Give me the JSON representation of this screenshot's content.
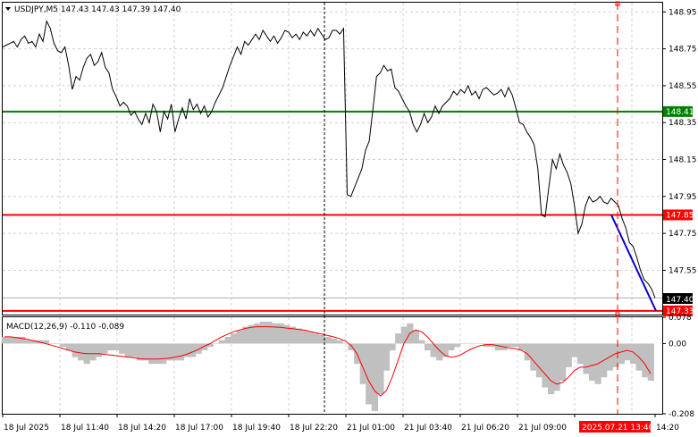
{
  "symbol_header": "USDJPY,M5  147.43 147.43 147.39 147.40",
  "macd_header": "MACD(12,26,9) -0.110 -0.089",
  "price_axis_ticks": [
    "148.95",
    "148.75",
    "148.55",
    "148.35",
    "148.15",
    "147.95",
    "147.75",
    "147.55"
  ],
  "macd_axis_ticks": [
    "0.078",
    "0.00",
    "-0.208"
  ],
  "time_labels": [
    "18 Jul 2025",
    "18 Jul 11:40",
    "18 Jul 14:20",
    "18 Jul 17:00",
    "18 Jul 19:40",
    "18 Jul 22:20",
    "21 Jul 01:00",
    "21 Jul 03:40",
    "21 Jul 06:20",
    "21 Jul 09:00",
    "2025.07.21 13:40",
    "14:20"
  ],
  "levels": [
    {
      "label": "148.41",
      "price": 148.41,
      "color": "#008000"
    },
    {
      "label": "147.85",
      "price": 147.85,
      "color": "#ff0000"
    },
    {
      "label": "147.33",
      "price": 147.33,
      "color": "#ff0000"
    }
  ],
  "current_price_label": "147.40",
  "colors": {
    "price_line": "#000000",
    "macd_hist": "#c0c0c0",
    "macd_signal": "#ff0000",
    "trend_line": "#0000cd",
    "cursor": "#ff0000",
    "green_level": "#008000",
    "red_level": "#ff0000"
  },
  "chart_data": {
    "type": "line",
    "price_range": [
      147.31,
      149.0
    ],
    "macd_range": [
      -0.208,
      0.078
    ],
    "close_prices": [
      148.76,
      148.77,
      148.78,
      148.79,
      148.76,
      148.8,
      148.82,
      148.78,
      148.79,
      148.76,
      148.83,
      148.79,
      148.9,
      148.86,
      148.78,
      148.74,
      148.73,
      148.76,
      148.66,
      148.53,
      148.6,
      148.58,
      148.65,
      148.7,
      148.72,
      148.66,
      148.68,
      148.73,
      148.65,
      148.62,
      148.53,
      148.49,
      148.44,
      148.46,
      148.44,
      148.39,
      148.41,
      148.37,
      148.34,
      148.4,
      148.35,
      148.45,
      148.41,
      148.3,
      148.41,
      148.37,
      148.45,
      148.3,
      148.37,
      148.43,
      148.37,
      148.48,
      148.42,
      148.45,
      148.4,
      148.44,
      148.38,
      148.41,
      148.46,
      148.5,
      148.54,
      148.6,
      148.66,
      148.71,
      148.76,
      148.72,
      148.79,
      148.77,
      148.8,
      148.83,
      148.8,
      148.85,
      148.82,
      148.79,
      148.82,
      148.78,
      148.81,
      148.85,
      148.84,
      148.81,
      148.83,
      148.8,
      148.84,
      148.82,
      148.85,
      148.82,
      148.86,
      148.83,
      148.8,
      148.81,
      148.85,
      148.85,
      148.83,
      148.86,
      147.96,
      147.95,
      148.0,
      148.05,
      148.1,
      148.2,
      148.25,
      148.42,
      148.6,
      148.62,
      148.66,
      148.63,
      148.64,
      148.54,
      148.52,
      148.48,
      148.44,
      148.41,
      148.34,
      148.3,
      148.34,
      148.4,
      148.35,
      148.38,
      148.44,
      148.4,
      148.44,
      148.46,
      148.48,
      148.52,
      148.5,
      148.53,
      148.51,
      148.55,
      148.5,
      148.52,
      148.48,
      148.53,
      148.54,
      148.52,
      148.5,
      148.51,
      148.53,
      148.49,
      148.54,
      148.5,
      148.43,
      148.35,
      148.34,
      148.3,
      148.27,
      148.23,
      148.1,
      147.85,
      147.84,
      148.0,
      148.15,
      148.1,
      148.18,
      148.12,
      148.08,
      148.02,
      147.9,
      147.75,
      147.8,
      147.9,
      147.95,
      147.92,
      147.93,
      147.95,
      147.92,
      147.91,
      147.94,
      147.92,
      147.9,
      147.83,
      147.78,
      147.7,
      147.68,
      147.62,
      147.55,
      147.5,
      147.48,
      147.45,
      147.4
    ],
    "macd_hist": [
      0.02,
      0.02,
      0.02,
      0.02,
      0.01,
      0.01,
      0.01,
      0.01,
      0.0,
      0.0,
      -0.01,
      -0.02,
      -0.04,
      -0.05,
      -0.06,
      -0.05,
      -0.04,
      -0.03,
      -0.02,
      -0.02,
      -0.03,
      -0.04,
      -0.04,
      -0.05,
      -0.05,
      -0.06,
      -0.06,
      -0.06,
      -0.05,
      -0.05,
      -0.05,
      -0.04,
      -0.04,
      -0.03,
      -0.02,
      -0.01,
      0.0,
      0.01,
      0.02,
      0.03,
      0.04,
      0.05,
      0.055,
      0.06,
      0.065,
      0.065,
      0.06,
      0.06,
      0.055,
      0.05,
      0.045,
      0.04,
      0.035,
      0.03,
      0.025,
      0.02,
      0.015,
      0.01,
      0.0,
      -0.02,
      -0.06,
      -0.12,
      -0.18,
      -0.2,
      -0.15,
      -0.08,
      -0.02,
      0.03,
      0.05,
      0.06,
      0.04,
      0.01,
      -0.02,
      -0.04,
      -0.05,
      -0.04,
      -0.02,
      -0.01,
      0.0,
      0.0,
      0.0,
      0.0,
      -0.01,
      -0.01,
      -0.02,
      -0.02,
      -0.01,
      -0.01,
      -0.02,
      -0.05,
      -0.08,
      -0.1,
      -0.13,
      -0.15,
      -0.14,
      -0.11,
      -0.07,
      -0.04,
      -0.06,
      -0.09,
      -0.11,
      -0.12,
      -0.1,
      -0.08,
      -0.07,
      -0.06,
      -0.05,
      -0.06,
      -0.08,
      -0.1,
      -0.11
    ],
    "macd_signal": [
      0.02,
      0.02,
      0.018,
      0.015,
      0.012,
      0.008,
      0.004,
      0.0,
      -0.005,
      -0.01,
      -0.015,
      -0.02,
      -0.025,
      -0.028,
      -0.03,
      -0.03,
      -0.03,
      -0.032,
      -0.034,
      -0.036,
      -0.038,
      -0.04,
      -0.042,
      -0.045,
      -0.046,
      -0.046,
      -0.046,
      -0.045,
      -0.043,
      -0.04,
      -0.037,
      -0.032,
      -0.025,
      -0.017,
      -0.008,
      0.0,
      0.01,
      0.02,
      0.028,
      0.035,
      0.04,
      0.045,
      0.048,
      0.05,
      0.05,
      0.05,
      0.049,
      0.048,
      0.046,
      0.044,
      0.042,
      0.04,
      0.036,
      0.032,
      0.028,
      0.024,
      0.02,
      0.015,
      0.008,
      -0.005,
      -0.03,
      -0.07,
      -0.11,
      -0.14,
      -0.155,
      -0.14,
      -0.1,
      -0.05,
      0.0,
      0.03,
      0.04,
      0.035,
      0.02,
      0.0,
      -0.02,
      -0.035,
      -0.04,
      -0.038,
      -0.03,
      -0.02,
      -0.012,
      -0.006,
      -0.003,
      -0.003,
      -0.006,
      -0.01,
      -0.013,
      -0.015,
      -0.02,
      -0.03,
      -0.05,
      -0.07,
      -0.09,
      -0.11,
      -0.12,
      -0.115,
      -0.1,
      -0.08,
      -0.07,
      -0.07,
      -0.065,
      -0.06,
      -0.05,
      -0.04,
      -0.03,
      -0.025,
      -0.02,
      -0.025,
      -0.04,
      -0.06,
      -0.09
    ],
    "trend_line": {
      "start_price": 147.85,
      "end_price": 147.33,
      "color": "#0000cd"
    },
    "grid": "dashed",
    "title": "",
    "xlabel": "",
    "ylabel": ""
  }
}
